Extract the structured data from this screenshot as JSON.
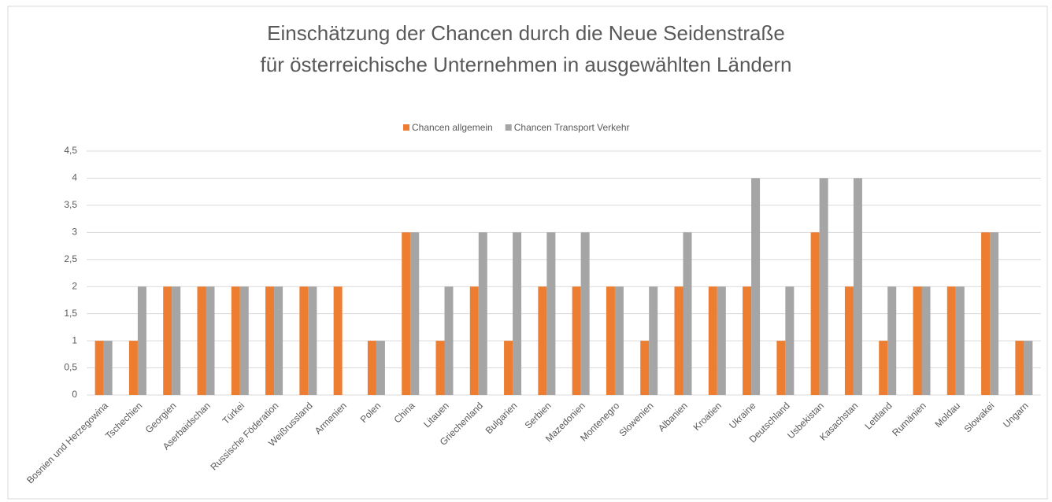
{
  "chart_data": {
    "type": "bar",
    "title": [
      "Einschätzung der Chancen durch die Neue Seidenstraße",
      "für österreichische Unternehmen in ausgewählten Ländern"
    ],
    "categories": [
      "Bosnien und Herzegowina",
      "Tschechien",
      "Georgien",
      "Aserbaidschan",
      "Türkei",
      "Russische Föderation",
      "Weißrussland",
      "Armenien",
      "Polen",
      "China",
      "Litauen",
      "Griechenland",
      "Bulgarien",
      "Serbien",
      "Mazedonien",
      "Montenegro",
      "Slowenien",
      "Albanien",
      "Kroatien",
      "Ukraine",
      "Deutschland",
      "Usbekistan",
      "Kasachstan",
      "Lettland",
      "Rumänien",
      "Moldau",
      "Slowakei",
      "Ungarn"
    ],
    "series": [
      {
        "name": "Chancen allgemein",
        "color": "#ed7d31",
        "values": [
          1,
          1,
          2,
          2,
          2,
          2,
          2,
          2,
          1,
          3,
          1,
          2,
          1,
          2,
          2,
          2,
          1,
          2,
          2,
          2,
          1,
          3,
          2,
          1,
          2,
          2,
          3,
          1
        ]
      },
      {
        "name": "Chancen Transport Verkehr",
        "color": "#a5a5a5",
        "values": [
          1,
          2,
          2,
          2,
          2,
          2,
          2,
          null,
          1,
          3,
          2,
          3,
          3,
          3,
          3,
          2,
          2,
          3,
          2,
          4,
          2,
          4,
          4,
          2,
          2,
          2,
          3,
          1
        ]
      }
    ],
    "ylim": [
      0,
      4.5
    ],
    "yticks": [
      0,
      {
        "value": 0.5,
        "label": "0,5"
      },
      1,
      {
        "value": 1.5,
        "label": "1,5"
      },
      2,
      {
        "value": 2.5,
        "label": "2,5"
      },
      3,
      {
        "value": 3.5,
        "label": "3,5"
      },
      4,
      {
        "value": 4.5,
        "label": "4,5"
      }
    ],
    "grid": true,
    "legend": "top"
  }
}
